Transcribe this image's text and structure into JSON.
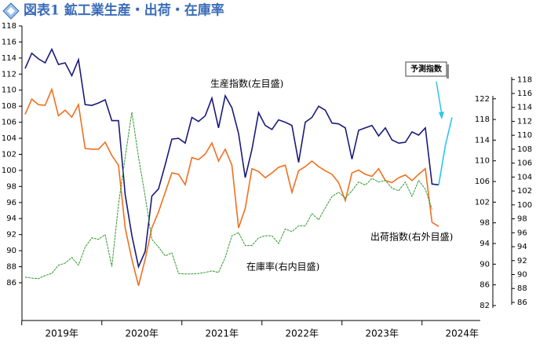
{
  "chart_data": {
    "type": "line",
    "title": "図表1 鉱工業生産・出荷・在庫率",
    "year_labels": [
      "2019年",
      "2020年",
      "2021年",
      "2022年",
      "2023年",
      "2024年"
    ],
    "categories": [
      null,
      null,
      null,
      null,
      null,
      null,
      null,
      null,
      null,
      null,
      null,
      null,
      null,
      null,
      null,
      null,
      null,
      null,
      null,
      null,
      null,
      null,
      null,
      null,
      null,
      null,
      null,
      null,
      null,
      null,
      null,
      null,
      null,
      null,
      null,
      null,
      null,
      null,
      null,
      null,
      null,
      null,
      null,
      null,
      null,
      null,
      null,
      null,
      null,
      null,
      null,
      null,
      null,
      null,
      null,
      null,
      null,
      null,
      null,
      null,
      null,
      null,
      null,
      null,
      null
    ],
    "ylim": [
      81.3,
      118
    ],
    "yticks": [
      86,
      88,
      90,
      92,
      94,
      96,
      98,
      100,
      102,
      104,
      106,
      108,
      110,
      112,
      114,
      116,
      118
    ],
    "y2lim": [
      79.1,
      136.1
    ],
    "y2ticks": [
      82,
      86,
      90,
      94,
      98,
      102,
      106,
      110,
      114,
      118,
      122
    ],
    "y3lim": [
      83.4,
      125.7
    ],
    "y3ticks": [
      86,
      88,
      90,
      92,
      94,
      96,
      98,
      100,
      102,
      104,
      106,
      108,
      110,
      112,
      114,
      116,
      118
    ],
    "series": [
      {
        "name": "生産指数(左目盛)",
        "color": "#1a1a7a",
        "axis": "y",
        "values": [
          112.7,
          114.6,
          113.9,
          113.4,
          115.1,
          113.2,
          113.4,
          111.8,
          113.8,
          108.2,
          108.1,
          108.4,
          108.8,
          106.2,
          106.2,
          97.0,
          91.9,
          88.0,
          89.9,
          96.8,
          97.7,
          100.7,
          103.9,
          104.0,
          103.4,
          106.6,
          106.1,
          106.8,
          109.0,
          105.3,
          109.3,
          107.8,
          104.6,
          99.1,
          102.6,
          107.2,
          105.6,
          105.1,
          106.3,
          106.0,
          105.6,
          101.0,
          106.0,
          106.6,
          108.0,
          107.5,
          105.9,
          105.8,
          105.3,
          101.4,
          105.0,
          105.3,
          105.6,
          104.3,
          105.3,
          103.8,
          103.4,
          103.5,
          104.8,
          104.4,
          105.3,
          98.3,
          98.2,
          null,
          null
        ]
      },
      {
        "name": "出荷指数(右外目盛)",
        "color": "#f07020",
        "axis": "y3",
        "values": [
          113.0,
          115.2,
          114.4,
          114.3,
          116.6,
          112.8,
          113.6,
          112.6,
          114.4,
          108.1,
          108.0,
          108.0,
          109.0,
          107.1,
          105.7,
          96.7,
          92.2,
          88.4,
          92.2,
          96.7,
          99.0,
          101.8,
          104.6,
          104.4,
          102.9,
          106.8,
          106.5,
          107.3,
          108.9,
          106.3,
          108.0,
          105.7,
          96.7,
          99.5,
          105.2,
          104.8,
          103.9,
          104.6,
          105.4,
          105.7,
          101.8,
          104.9,
          105.5,
          106.3,
          105.5,
          104.9,
          104.4,
          103.2,
          100.6,
          104.6,
          105.0,
          104.4,
          104.1,
          105.2,
          103.5,
          103.2,
          103.9,
          104.3,
          103.5,
          104.4,
          105.2,
          97.5,
          96.9,
          null,
          null
        ]
      },
      {
        "name": "在庫率(右内目盛)",
        "color": "#2e9a2e",
        "axis": "y2",
        "values": [
          87.5,
          87.3,
          87.2,
          87.8,
          88.2,
          89.8,
          90.2,
          91.3,
          89.8,
          93.3,
          95.1,
          94.8,
          95.7,
          89.5,
          101.6,
          110.7,
          119.4,
          110.7,
          103.1,
          94.8,
          93.3,
          91.6,
          92.2,
          88.2,
          88.1,
          88.1,
          88.2,
          88.4,
          88.7,
          88.4,
          91.3,
          95.5,
          96.1,
          93.6,
          93.6,
          95.1,
          95.5,
          95.5,
          94.0,
          96.8,
          96.3,
          97.4,
          97.4,
          99.8,
          98.6,
          100.9,
          103.1,
          103.9,
          102.8,
          104.2,
          105.9,
          105.3,
          106.6,
          105.9,
          106.2,
          104.7,
          104.2,
          105.9,
          103.1,
          106.2,
          104.5,
          100.6,
          null,
          null,
          null
        ]
      },
      {
        "name": "予測指数",
        "color": "#29c8e8",
        "axis": "y",
        "values": [
          null,
          null,
          null,
          null,
          null,
          null,
          null,
          null,
          null,
          null,
          null,
          null,
          null,
          null,
          null,
          null,
          null,
          null,
          null,
          null,
          null,
          null,
          null,
          null,
          null,
          null,
          null,
          null,
          null,
          null,
          null,
          null,
          null,
          null,
          null,
          null,
          null,
          null,
          null,
          null,
          null,
          null,
          null,
          null,
          null,
          null,
          null,
          null,
          null,
          null,
          null,
          null,
          null,
          null,
          null,
          null,
          null,
          null,
          null,
          null,
          null,
          null,
          98.2,
          103.1,
          106.6
        ]
      }
    ]
  }
}
